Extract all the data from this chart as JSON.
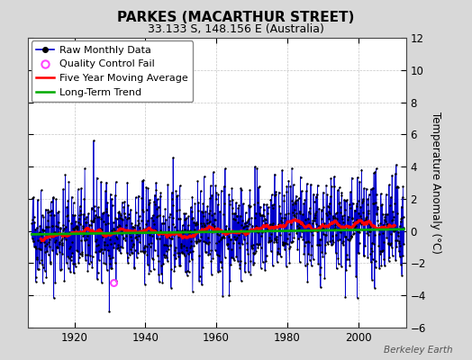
{
  "title": "PARKES (MACARTHUR STREET)",
  "subtitle": "33.133 S, 148.156 E (Australia)",
  "ylabel": "Temperature Anomaly (°C)",
  "watermark": "Berkeley Earth",
  "start_year": 1908,
  "end_year": 2013,
  "ylim": [
    -6,
    12
  ],
  "yticks": [
    -6,
    -4,
    -2,
    0,
    2,
    4,
    6,
    8,
    10,
    12
  ],
  "xticks": [
    1920,
    1940,
    1960,
    1980,
    2000
  ],
  "bg_color": "#d8d8d8",
  "plot_bg_color": "#ffffff",
  "raw_line_color": "#0000cc",
  "raw_dot_color": "#000000",
  "qc_fail_color": "#ff44ff",
  "moving_avg_color": "#ff0000",
  "trend_color": "#00aa00",
  "seed": 42,
  "qc_fail_points": [
    [
      1931.0,
      -3.2
    ]
  ],
  "legend_fontsize": 8,
  "title_fontsize": 11,
  "subtitle_fontsize": 9
}
